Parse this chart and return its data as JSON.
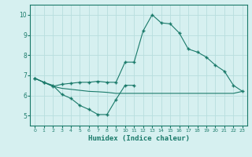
{
  "line1_x": [
    0,
    1,
    2,
    3,
    4,
    5,
    6,
    7,
    8,
    9,
    10,
    11
  ],
  "line1_y": [
    6.85,
    6.65,
    6.5,
    6.05,
    5.85,
    5.5,
    5.3,
    5.05,
    5.05,
    5.8,
    6.5,
    6.5
  ],
  "line2_x": [
    0,
    1,
    2,
    3,
    4,
    5,
    6,
    7,
    8,
    9,
    10,
    11,
    12,
    13,
    14,
    15,
    16,
    17,
    18,
    19,
    20,
    21,
    22,
    23
  ],
  "line2_y": [
    6.85,
    6.65,
    6.45,
    6.55,
    6.6,
    6.65,
    6.65,
    6.7,
    6.65,
    6.65,
    7.65,
    7.65,
    9.2,
    10.0,
    9.6,
    9.55,
    9.1,
    8.3,
    8.15,
    7.9,
    7.5,
    7.2,
    6.5,
    6.2
  ],
  "line3_x": [
    0,
    1,
    2,
    3,
    4,
    5,
    6,
    7,
    8,
    9,
    10,
    11,
    12,
    13,
    14,
    15,
    16,
    17,
    18,
    19,
    20,
    21,
    22,
    23
  ],
  "line3_y": [
    6.85,
    6.65,
    6.45,
    6.35,
    6.3,
    6.25,
    6.2,
    6.18,
    6.15,
    6.1,
    6.1,
    6.1,
    6.1,
    6.1,
    6.1,
    6.1,
    6.1,
    6.1,
    6.1,
    6.1,
    6.1,
    6.1,
    6.1,
    6.2
  ],
  "line_color": "#1a7a6a",
  "bg_color": "#d6f0f0",
  "grid_color": "#b8dede",
  "xlabel": "Humidex (Indice chaleur)",
  "xlim": [
    -0.5,
    23.5
  ],
  "ylim": [
    4.5,
    10.5
  ],
  "yticks": [
    5,
    6,
    7,
    8,
    9,
    10
  ],
  "xticks": [
    0,
    1,
    2,
    3,
    4,
    5,
    6,
    7,
    8,
    9,
    10,
    11,
    12,
    13,
    14,
    15,
    16,
    17,
    18,
    19,
    20,
    21,
    22,
    23
  ]
}
